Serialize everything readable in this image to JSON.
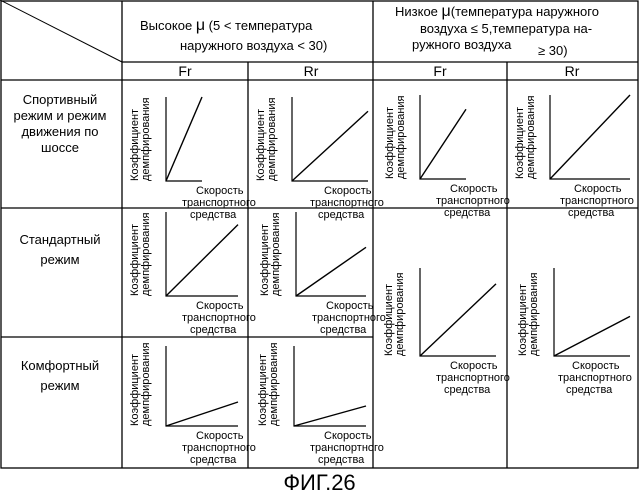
{
  "header": {
    "high_mu": {
      "symbol": "μ",
      "prefix": "Высокое",
      "line1_suffix": "(5 < температура",
      "line2": "наружного воздуха < 30)"
    },
    "low_mu": {
      "symbol": "μ",
      "prefix": "Низкое",
      "line1_suffix": "(температура наружного",
      "line2": "воздуха ≤ 5,температура на-",
      "line3": "ружного воздуха",
      "line4": "≥ 30)"
    },
    "fr_label": "Fr",
    "rr_label": "Rr"
  },
  "rows": [
    {
      "label_lines": [
        "Спортивный",
        "режим и режим",
        "движения по",
        "шоссе"
      ]
    },
    {
      "label_lines": [
        "Стандартный",
        "режим"
      ]
    },
    {
      "label_lines": [
        "Комфортный",
        "режим"
      ]
    }
  ],
  "axis_labels": {
    "y_line1": "Коэффициент",
    "y_line2": "демпфирования",
    "x_line1": "Скорость",
    "x_line2": "транспортного",
    "x_line3": "средства"
  },
  "caption": "ФИГ.26",
  "chart_data": [
    {
      "type": "line",
      "condition": "high_mu",
      "wheel": "Fr",
      "mode": "Спортивный режим и режим движения по шоссе",
      "x": [
        0,
        1
      ],
      "y": [
        0,
        1.0
      ]
    },
    {
      "type": "line",
      "condition": "high_mu",
      "wheel": "Rr",
      "mode": "Спортивный режим и режим движения по шоссе",
      "x": [
        0,
        1
      ],
      "y": [
        0,
        0.83
      ]
    },
    {
      "type": "line",
      "condition": "low_mu",
      "wheel": "Fr",
      "mode": "Спортивный режим и режим движения по шоссе",
      "x": [
        0,
        1
      ],
      "y": [
        0,
        0.83
      ]
    },
    {
      "type": "line",
      "condition": "low_mu",
      "wheel": "Rr",
      "mode": "Спортивный режим и режим движения по шоссе",
      "x": [
        0,
        1
      ],
      "y": [
        0,
        1.0
      ]
    },
    {
      "type": "line",
      "condition": "high_mu",
      "wheel": "Fr",
      "mode": "Стандартный режим",
      "x": [
        0,
        1
      ],
      "y": [
        0,
        0.85
      ]
    },
    {
      "type": "line",
      "condition": "high_mu",
      "wheel": "Rr",
      "mode": "Стандартный режим",
      "x": [
        0,
        1
      ],
      "y": [
        0,
        0.58
      ]
    },
    {
      "type": "line",
      "condition": "high_mu",
      "wheel": "Fr",
      "mode": "Комфортный режим",
      "x": [
        0,
        1
      ],
      "y": [
        0,
        0.3
      ]
    },
    {
      "type": "line",
      "condition": "high_mu",
      "wheel": "Rr",
      "mode": "Комфортный режим",
      "x": [
        0,
        1
      ],
      "y": [
        0,
        0.25
      ]
    },
    {
      "type": "line",
      "condition": "low_mu",
      "wheel": "Fr",
      "mode": "Стандартный и Комфортный режимы",
      "x": [
        0,
        1
      ],
      "y": [
        0,
        0.82
      ]
    },
    {
      "type": "line",
      "condition": "low_mu",
      "wheel": "Rr",
      "mode": "Стандартный и Комфортный режимы",
      "x": [
        0,
        1
      ],
      "y": [
        0,
        0.45
      ]
    }
  ]
}
